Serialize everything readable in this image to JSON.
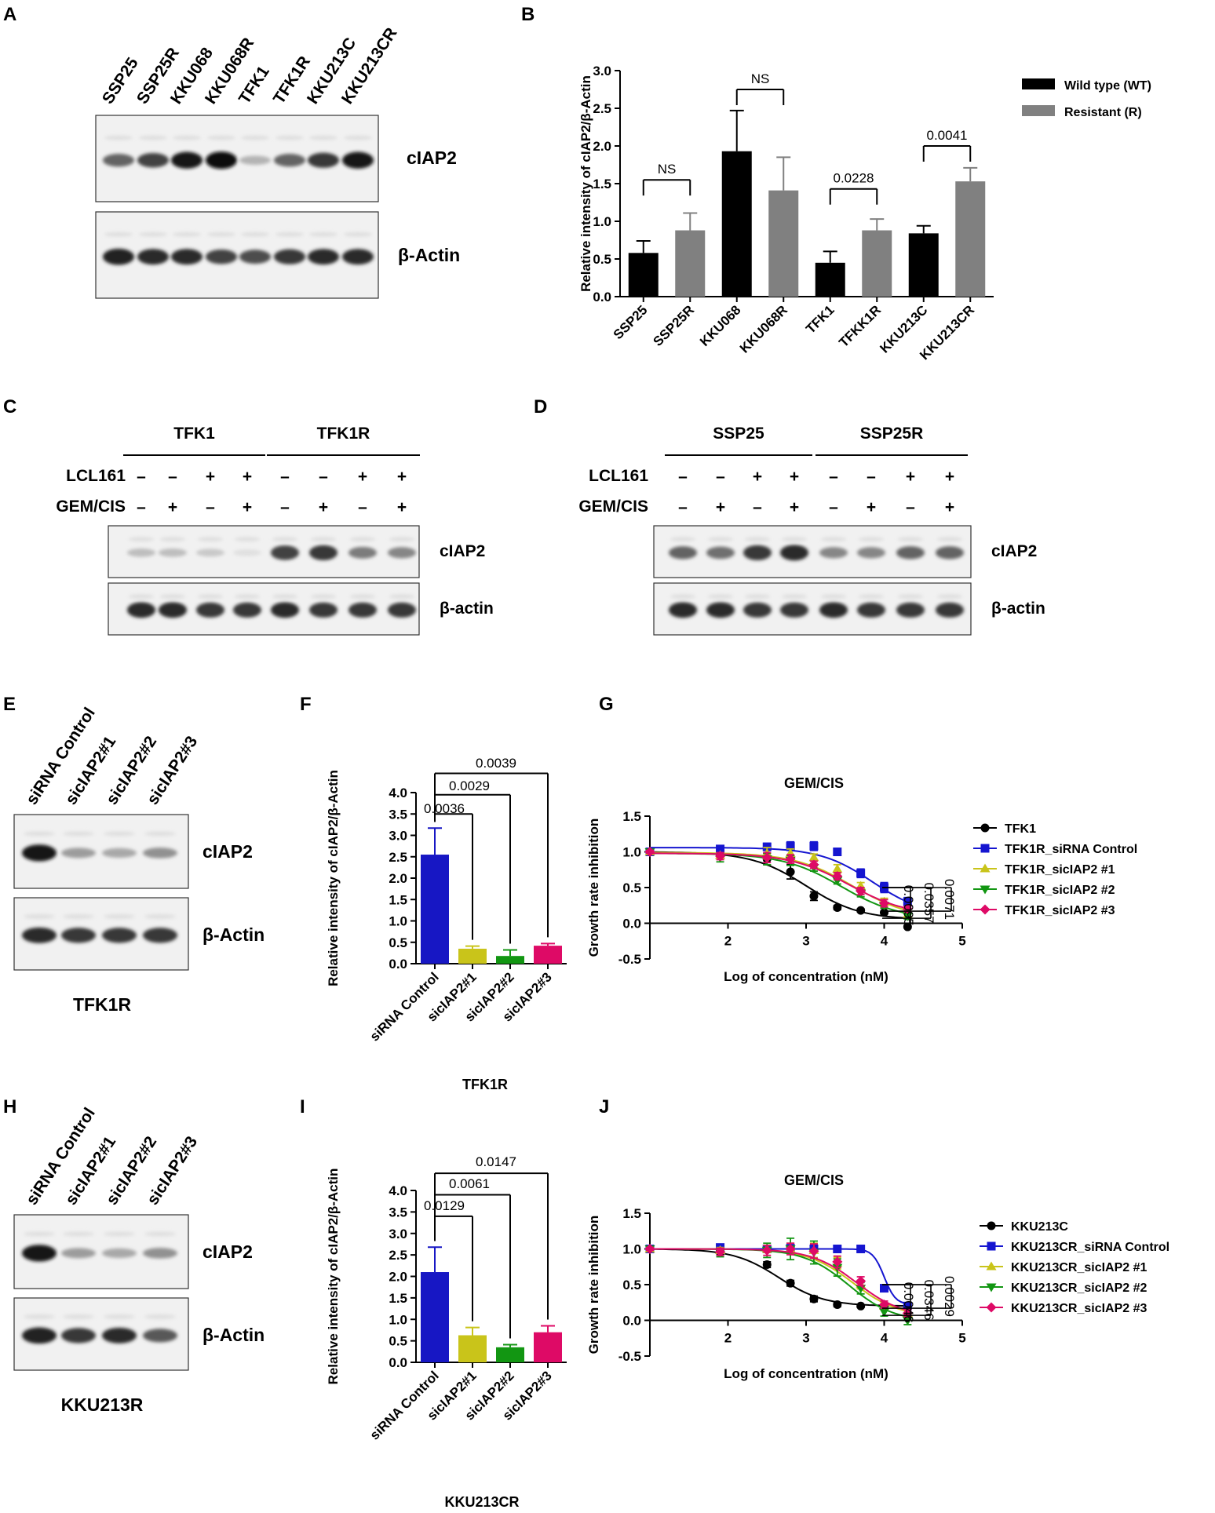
{
  "panels": {
    "A": {
      "letter": "A",
      "lanes": [
        "SSP25",
        "SSP25R",
        "KKU068",
        "KKU068R",
        "TFK1",
        "TFK1R",
        "KKU213C",
        "KKU213CR"
      ],
      "bands": [
        "cIAP2",
        "β-Actin"
      ],
      "intensity": [
        [
          0.6,
          0.75,
          0.95,
          1.0,
          0.25,
          0.6,
          0.8,
          0.95
        ],
        [
          0.9,
          0.85,
          0.85,
          0.75,
          0.7,
          0.8,
          0.85,
          0.85
        ]
      ]
    },
    "C": {
      "letter": "C",
      "groups": [
        "TFK1",
        "TFK1R"
      ],
      "conditions": [
        "LCL161",
        "GEM/CIS"
      ],
      "lcl161": [
        "–",
        "–",
        "+",
        "+",
        "–",
        "–",
        "+",
        "+"
      ],
      "gemcis": [
        "–",
        "+",
        "–",
        "+",
        "–",
        "+",
        "–",
        "+"
      ],
      "bands": [
        "cIAP2",
        "β-actin"
      ],
      "intensity": [
        [
          0.2,
          0.2,
          0.15,
          0.05,
          0.75,
          0.8,
          0.5,
          0.45
        ],
        [
          0.85,
          0.85,
          0.8,
          0.8,
          0.85,
          0.8,
          0.8,
          0.8
        ]
      ]
    },
    "D": {
      "letter": "D",
      "groups": [
        "SSP25",
        "SSP25R"
      ],
      "conditions": [
        "LCL161",
        "GEM/CIS"
      ],
      "lcl161": [
        "–",
        "–",
        "+",
        "+",
        "–",
        "–",
        "+",
        "+"
      ],
      "gemcis": [
        "–",
        "+",
        "–",
        "+",
        "–",
        "+",
        "–",
        "+"
      ],
      "bands": [
        "cIAP2",
        "β-actin"
      ],
      "intensity": [
        [
          0.6,
          0.55,
          0.8,
          0.85,
          0.45,
          0.45,
          0.6,
          0.6
        ],
        [
          0.85,
          0.85,
          0.8,
          0.8,
          0.85,
          0.8,
          0.8,
          0.8
        ]
      ]
    },
    "E": {
      "letter": "E",
      "lanes": [
        "siRNA Control",
        "sicIAP2#1",
        "sicIAP2#2",
        "sicIAP2#3"
      ],
      "bands": [
        "cIAP2",
        "β-Actin"
      ],
      "caption": "TFK1R",
      "intensity": [
        [
          0.95,
          0.35,
          0.3,
          0.4
        ],
        [
          0.85,
          0.8,
          0.8,
          0.8
        ]
      ]
    },
    "H": {
      "letter": "H",
      "lanes": [
        "siRNA Control",
        "sicIAP2#1",
        "sicIAP2#2",
        "sicIAP2#3"
      ],
      "bands": [
        "cIAP2",
        "β-Actin"
      ],
      "caption": "KKU213R",
      "intensity": [
        [
          0.95,
          0.35,
          0.3,
          0.4
        ],
        [
          0.9,
          0.8,
          0.85,
          0.65
        ]
      ]
    },
    "B": {
      "letter": "B"
    },
    "F": {
      "letter": "F"
    },
    "G": {
      "letter": "G"
    },
    "I": {
      "letter": "I"
    },
    "J": {
      "letter": "J"
    }
  },
  "chart_data": [
    {
      "id": "B",
      "type": "bar",
      "ylabel": "Relative intensity of cIAP2/β-Actin",
      "ylim": [
        0,
        3.0
      ],
      "yticks": [
        0.0,
        0.5,
        1.0,
        1.5,
        2.0,
        2.5,
        3.0
      ],
      "categories": [
        "SSP25",
        "SSP25R",
        "KKU068",
        "KKU068R",
        "TFK1",
        "TFKK1R",
        "KKU213C",
        "KKU213CR"
      ],
      "values": [
        0.58,
        0.88,
        1.93,
        1.41,
        0.45,
        0.88,
        0.84,
        1.53
      ],
      "errors": [
        0.16,
        0.23,
        0.54,
        0.44,
        0.15,
        0.15,
        0.1,
        0.18
      ],
      "colors": [
        "#000000",
        "#808080",
        "#000000",
        "#808080",
        "#000000",
        "#808080",
        "#000000",
        "#808080"
      ],
      "legend": [
        {
          "name": "Wild type (WT)",
          "color": "#000000"
        },
        {
          "name": "Resistant (R)",
          "color": "#808080"
        }
      ],
      "legend_position": "top-right",
      "comparisons": [
        {
          "from": 0,
          "to": 1,
          "label": "NS",
          "y": 1.55
        },
        {
          "from": 2,
          "to": 3,
          "label": "NS",
          "y": 2.75
        },
        {
          "from": 4,
          "to": 5,
          "label": "0.0228",
          "y": 1.43
        },
        {
          "from": 6,
          "to": 7,
          "label": "0.0041",
          "y": 2.0
        }
      ]
    },
    {
      "id": "F",
      "type": "bar",
      "ylabel": "Relative intensity of cIAP2/β-Actin",
      "xlabel": "TFK1R",
      "ylim": [
        0,
        4.0
      ],
      "yticks": [
        0.0,
        0.5,
        1.0,
        1.5,
        2.0,
        2.5,
        3.0,
        3.5,
        4.0
      ],
      "categories": [
        "siRNA Control",
        "sicIAP2#1",
        "sicIAP2#2",
        "sicIAP2#3"
      ],
      "values": [
        2.55,
        0.35,
        0.18,
        0.42
      ],
      "errors": [
        0.62,
        0.06,
        0.14,
        0.05
      ],
      "colors": [
        "#1717c4",
        "#c9c41a",
        "#129612",
        "#de0a66"
      ],
      "comparisons": [
        {
          "from": 0,
          "to": 1,
          "label": "0.0036",
          "y": 3.5
        },
        {
          "from": 0,
          "to": 2,
          "label": "0.0029",
          "y": 3.95
        },
        {
          "from": 0,
          "to": 3,
          "label": "0.0039",
          "y": 4.45
        }
      ]
    },
    {
      "id": "G",
      "type": "line",
      "title": "GEM/CIS",
      "xlabel": "Log of concentration (nM)",
      "ylabel": "Growth rate inhibition",
      "xlim": [
        1,
        5
      ],
      "ylim": [
        -0.5,
        1.5
      ],
      "xticks": [
        2,
        3,
        4,
        5
      ],
      "yticks": [
        -0.5,
        0.0,
        0.5,
        1.0,
        1.5
      ],
      "x": [
        1.0,
        1.9,
        2.5,
        2.8,
        3.1,
        3.4,
        3.7,
        4.0,
        4.3
      ],
      "series": [
        {
          "name": "TFK1",
          "color": "#000000",
          "marker": "circle",
          "y": [
            1.0,
            0.98,
            0.9,
            0.72,
            0.38,
            0.22,
            0.18,
            0.15,
            -0.05
          ],
          "err": [
            0.02,
            0.03,
            0.08,
            0.1,
            0.06,
            0.03,
            0.02,
            0.02,
            0.02
          ],
          "fit": {
            "top": 1.0,
            "bottom": 0.05,
            "ic50": 3.0,
            "slope": 2.5
          }
        },
        {
          "name": "TFK1R_siRNA Control",
          "color": "#1515d0",
          "marker": "square",
          "y": [
            1.0,
            1.04,
            1.07,
            1.08,
            1.08,
            1.0,
            0.7,
            0.5,
            0.3
          ],
          "err": [
            0.02,
            0.03,
            0.05,
            0.06,
            0.06,
            0.05,
            0.06,
            0.07,
            0.06
          ],
          "fit": {
            "top": 1.06,
            "bottom": 0.1,
            "ic50": 3.85,
            "slope": 2.6
          }
        },
        {
          "name": "TFK1R_sicIAP2 #1",
          "color": "#c9c41a",
          "marker": "triangle-up",
          "y": [
            1.0,
            0.95,
            0.98,
            0.98,
            0.92,
            0.76,
            0.52,
            0.3,
            0.12
          ],
          "err": [
            0.02,
            0.04,
            0.08,
            0.06,
            0.05,
            0.06,
            0.05,
            0.05,
            0.04
          ],
          "fit": {
            "top": 0.99,
            "bottom": 0.05,
            "ic50": 3.6,
            "slope": 2.3
          }
        },
        {
          "name": "TFK1R_sicIAP2 #2",
          "color": "#129612",
          "marker": "triangle-down",
          "y": [
            1.0,
            0.92,
            0.9,
            0.88,
            0.78,
            0.6,
            0.42,
            0.25,
            0.1
          ],
          "err": [
            0.02,
            0.06,
            0.08,
            0.07,
            0.05,
            0.05,
            0.05,
            0.04,
            0.04
          ],
          "fit": {
            "top": 0.98,
            "bottom": 0.05,
            "ic50": 3.45,
            "slope": 2.3
          }
        },
        {
          "name": "TFK1R_sicIAP2 #3",
          "color": "#de0a66",
          "marker": "diamond",
          "y": [
            1.0,
            0.94,
            0.92,
            0.9,
            0.82,
            0.66,
            0.45,
            0.28,
            0.2
          ],
          "err": [
            0.02,
            0.05,
            0.07,
            0.06,
            0.05,
            0.05,
            0.05,
            0.05,
            0.04
          ],
          "fit": {
            "top": 0.98,
            "bottom": 0.1,
            "ic50": 3.55,
            "slope": 2.3
          }
        }
      ],
      "brackets": [
        {
          "label": "0.0095",
          "y_top": 0.5,
          "y_bottom": 0.0
        },
        {
          "label": "0.0357",
          "y_top": 0.5,
          "y_bottom": 0.07
        },
        {
          "label": "0.0071",
          "y_top": 0.5,
          "y_bottom": 0.17
        }
      ]
    },
    {
      "id": "I",
      "type": "bar",
      "ylabel": "Relative intensity of cIAP2/β-Actin",
      "xlabel": "KKU213CR",
      "ylim": [
        0,
        4.0
      ],
      "yticks": [
        0.0,
        0.5,
        1.0,
        1.5,
        2.0,
        2.5,
        3.0,
        3.5,
        4.0
      ],
      "categories": [
        "siRNA Control",
        "sicIAP2#1",
        "sicIAP2#2",
        "sicIAP2#3"
      ],
      "values": [
        2.1,
        0.63,
        0.35,
        0.7
      ],
      "errors": [
        0.58,
        0.18,
        0.06,
        0.15
      ],
      "colors": [
        "#1717c4",
        "#c9c41a",
        "#129612",
        "#de0a66"
      ],
      "comparisons": [
        {
          "from": 0,
          "to": 1,
          "label": "0.0129",
          "y": 3.4
        },
        {
          "from": 0,
          "to": 2,
          "label": "0.0061",
          "y": 3.9
        },
        {
          "from": 0,
          "to": 3,
          "label": "0.0147",
          "y": 4.4
        }
      ]
    },
    {
      "id": "J",
      "type": "line",
      "title": "GEM/CIS",
      "xlabel": "Log of concentration (nM)",
      "ylabel": "Growth rate inhibition",
      "xlim": [
        1,
        5
      ],
      "ylim": [
        -0.5,
        1.5
      ],
      "xticks": [
        2,
        3,
        4,
        5
      ],
      "yticks": [
        -0.5,
        0.0,
        0.5,
        1.0,
        1.5
      ],
      "x": [
        1.0,
        1.9,
        2.5,
        2.8,
        3.1,
        3.4,
        3.7,
        4.0,
        4.3
      ],
      "series": [
        {
          "name": "KKU213C",
          "color": "#000000",
          "marker": "circle",
          "y": [
            1.0,
            0.95,
            0.78,
            0.52,
            0.3,
            0.22,
            0.2,
            0.2,
            0.18
          ],
          "err": [
            0.02,
            0.04,
            0.04,
            0.04,
            0.04,
            0.03,
            0.02,
            0.02,
            0.02
          ],
          "fit": {
            "top": 1.0,
            "bottom": 0.2,
            "ic50": 2.65,
            "slope": 3.0
          }
        },
        {
          "name": "KKU213CR_siRNA Control",
          "color": "#1515d0",
          "marker": "square",
          "y": [
            1.0,
            1.02,
            1.0,
            1.01,
            1.0,
            1.0,
            1.0,
            0.45,
            0.2
          ],
          "err": [
            0.02,
            0.04,
            0.04,
            0.04,
            0.04,
            0.03,
            0.02,
            0.05,
            0.03
          ],
          "fit": {
            "top": 1.0,
            "bottom": 0.22,
            "ic50": 4.0,
            "slope": 12.0
          }
        },
        {
          "name": "KKU213CR_sicIAP2 #1",
          "color": "#c9c41a",
          "marker": "triangle-up",
          "y": [
            1.0,
            0.98,
            1.0,
            1.0,
            0.98,
            0.8,
            0.5,
            0.2,
            0.1
          ],
          "err": [
            0.02,
            0.04,
            0.05,
            0.08,
            0.1,
            0.08,
            0.06,
            0.05,
            0.05
          ],
          "fit": {
            "top": 1.0,
            "bottom": 0.05,
            "ic50": 3.6,
            "slope": 3.0
          }
        },
        {
          "name": "KKU213CR_sicIAP2 #2",
          "color": "#129612",
          "marker": "triangle-down",
          "y": [
            1.0,
            0.95,
            0.98,
            1.0,
            0.95,
            0.74,
            0.45,
            0.12,
            0.0
          ],
          "err": [
            0.02,
            0.06,
            0.1,
            0.15,
            0.16,
            0.12,
            0.08,
            0.06,
            0.06
          ],
          "fit": {
            "top": 1.0,
            "bottom": -0.02,
            "ic50": 3.55,
            "slope": 3.0
          }
        },
        {
          "name": "KKU213CR_sicIAP2 #3",
          "color": "#de0a66",
          "marker": "diamond",
          "y": [
            1.0,
            0.96,
            0.98,
            1.0,
            0.97,
            0.82,
            0.55,
            0.22,
            0.1
          ],
          "err": [
            0.02,
            0.05,
            0.07,
            0.08,
            0.1,
            0.08,
            0.06,
            0.05,
            0.05
          ],
          "fit": {
            "top": 1.0,
            "bottom": 0.05,
            "ic50": 3.65,
            "slope": 3.0
          }
        }
      ],
      "brackets": [
        {
          "label": "0.0046",
          "y_top": 0.5,
          "y_bottom": 0.0
        },
        {
          "label": "0.0346",
          "y_top": 0.5,
          "y_bottom": 0.07
        },
        {
          "label": "0.0029",
          "y_top": 0.5,
          "y_bottom": 0.17
        }
      ]
    }
  ]
}
